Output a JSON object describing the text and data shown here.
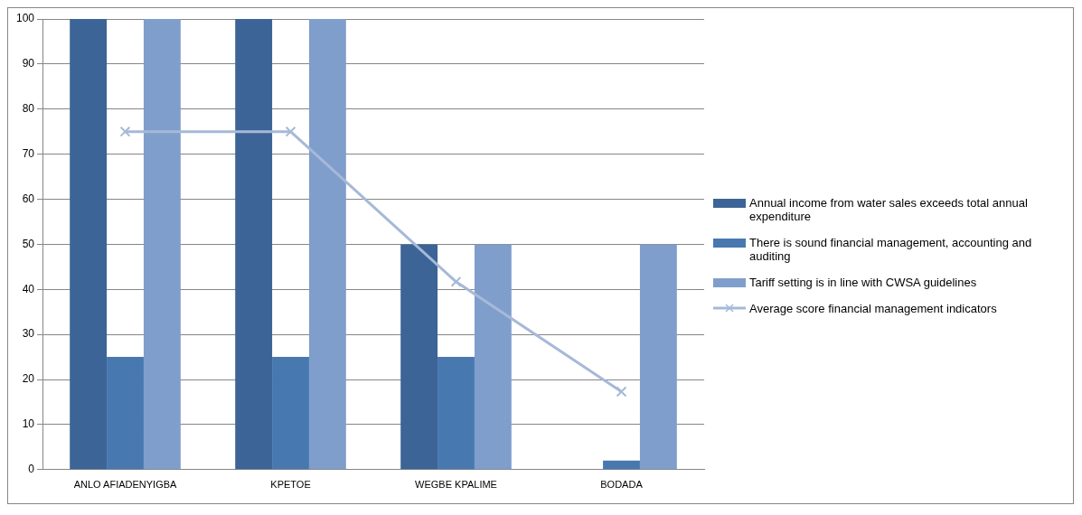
{
  "chart_data": {
    "type": "bar",
    "categories": [
      "ANLO AFIADENYIGBA",
      "KPETOE",
      "WEGBE KPALIME",
      "BODADA"
    ],
    "series": [
      {
        "name": "Annual income from water sales exceeds total annual expenditure",
        "color": "#3c6496",
        "values": [
          100,
          100,
          50,
          0
        ]
      },
      {
        "name": "There is sound financial management, accounting and auditing",
        "color": "#4878b0",
        "values": [
          25,
          25,
          25,
          2
        ]
      },
      {
        "name": "Tariff setting is in line with CWSA guidelines",
        "color": "#7f9ecb",
        "values": [
          100,
          100,
          50,
          50
        ]
      },
      {
        "name": "Average score financial management indicators",
        "color": "#a6b9d8",
        "values": [
          75,
          75,
          41.7,
          17.3
        ],
        "type": "line",
        "marker": "cross"
      }
    ],
    "ylim": [
      0,
      100
    ],
    "yticks": [
      0,
      10,
      20,
      30,
      40,
      50,
      60,
      70,
      80,
      90,
      100
    ],
    "grid": "y",
    "legend": "right"
  }
}
